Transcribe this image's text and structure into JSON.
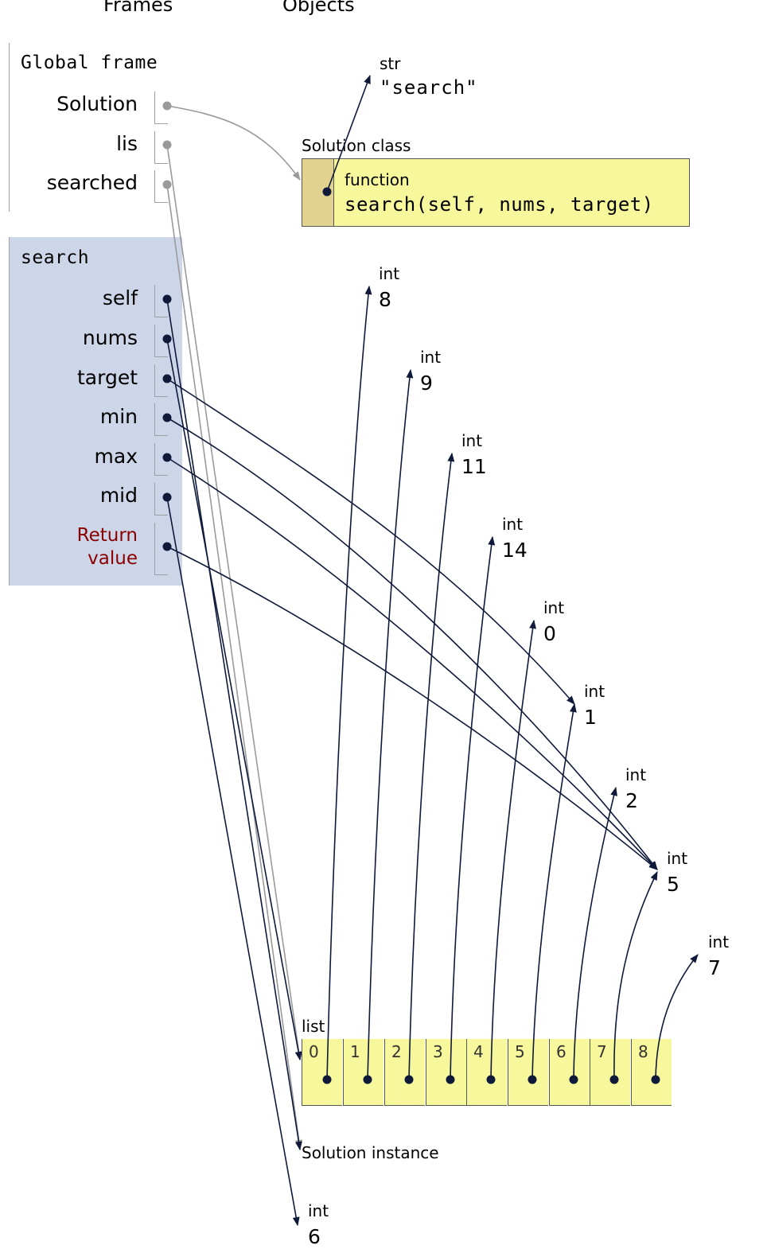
{
  "headers": {
    "frames": "Frames",
    "objects": "Objects"
  },
  "global_frame": {
    "title": "Global frame",
    "vars": [
      "Solution",
      "lis",
      "searched"
    ]
  },
  "search_frame": {
    "title": "search",
    "vars": [
      "self",
      "nums",
      "target",
      "min",
      "max",
      "mid"
    ],
    "return_label_1": "Return",
    "return_label_2": "value"
  },
  "str_obj": {
    "type": "str",
    "value": "\"search\""
  },
  "class_obj": {
    "label": "Solution class",
    "func_type": "function",
    "func_sig": "search(self, nums, target)"
  },
  "ints": [
    {
      "type": "int",
      "value": "8"
    },
    {
      "type": "int",
      "value": "9"
    },
    {
      "type": "int",
      "value": "11"
    },
    {
      "type": "int",
      "value": "14"
    },
    {
      "type": "int",
      "value": "0"
    },
    {
      "type": "int",
      "value": "1"
    },
    {
      "type": "int",
      "value": "2"
    },
    {
      "type": "int",
      "value": "5"
    },
    {
      "type": "int",
      "value": "7"
    },
    {
      "type": "int",
      "value": "6"
    }
  ],
  "list_obj": {
    "label": "list",
    "indices": [
      "0",
      "1",
      "2",
      "3",
      "4",
      "5",
      "6",
      "7",
      "8"
    ]
  },
  "instance_label": "Solution instance",
  "colors": {
    "frame_bg": "#cdd5e8",
    "class_bg": "#f7f79b",
    "class_side": "#e2d28f",
    "pointer": "#0f1a3a",
    "inactive_pointer": "#9a9a9a",
    "return_label": "#8b0000"
  }
}
